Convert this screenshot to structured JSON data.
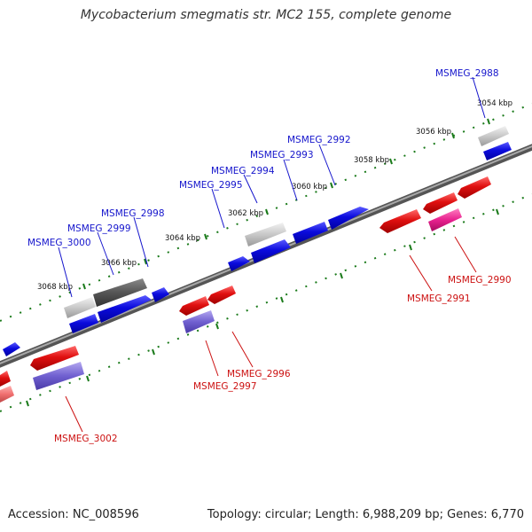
{
  "title": "Mycobacterium smegmatis str. MC2 155, complete genome",
  "footer": {
    "accession": "Accession: NC_008596",
    "summary": "Topology: circular; Length: 6,988,209 bp; Genes: 6,770"
  },
  "colors": {
    "forward": "#0b0bdd",
    "reverse": "#dd1111",
    "pseudo_light": "#cfcfcf",
    "pseudo_dark": "#555555",
    "violet": "#6a5acd",
    "pink": "#e8218f",
    "salmon": "#f07070",
    "backbone": "#777777",
    "tick": "#1a7a1a"
  },
  "scale_ticks": [
    "3054 kbp",
    "3056 kbp",
    "3058 kbp",
    "3060 kbp",
    "3062 kbp",
    "3064 kbp",
    "3066 kbp",
    "3068 kbp"
  ],
  "forward_genes": [
    "MSMEG_2988",
    "MSMEG_2992",
    "MSMEG_2993",
    "MSMEG_2994",
    "MSMEG_2995",
    "MSMEG_2998",
    "MSMEG_2999",
    "MSMEG_3000"
  ],
  "reverse_genes": [
    "MSMEG_2990",
    "MSMEG_2991",
    "MSMEG_2996",
    "MSMEG_2997",
    "MSMEG_3002"
  ]
}
